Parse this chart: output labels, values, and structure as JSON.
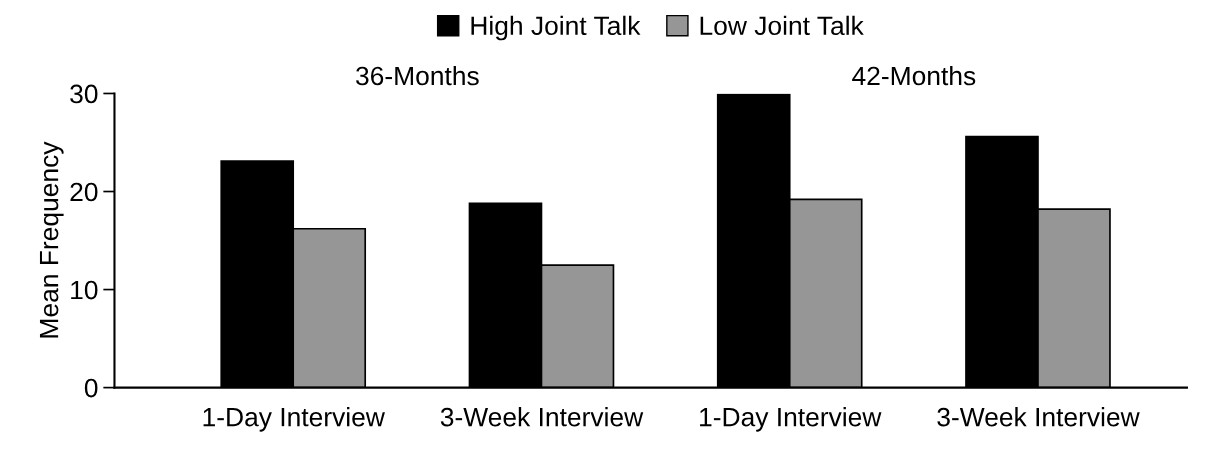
{
  "chart_data": {
    "type": "bar",
    "ylabel": "Mean Frequency",
    "categories": [
      "1-Day Interview",
      "3-Week Interview",
      "1-Day Interview",
      "3-Week Interview"
    ],
    "series": [
      {
        "name": "High Joint Talk",
        "color": "#000000",
        "values": [
          23.1,
          18.8,
          29.9,
          25.6
        ]
      },
      {
        "name": "Low Joint Talk",
        "color": "#969696",
        "values": [
          16.2,
          12.5,
          19.2,
          18.2
        ]
      }
    ],
    "annotations": [
      "36-Months",
      "42-Months"
    ],
    "ylim": [
      0,
      30
    ],
    "yticks": [
      0,
      10,
      20,
      30
    ],
    "grid": false,
    "legend": "top"
  }
}
